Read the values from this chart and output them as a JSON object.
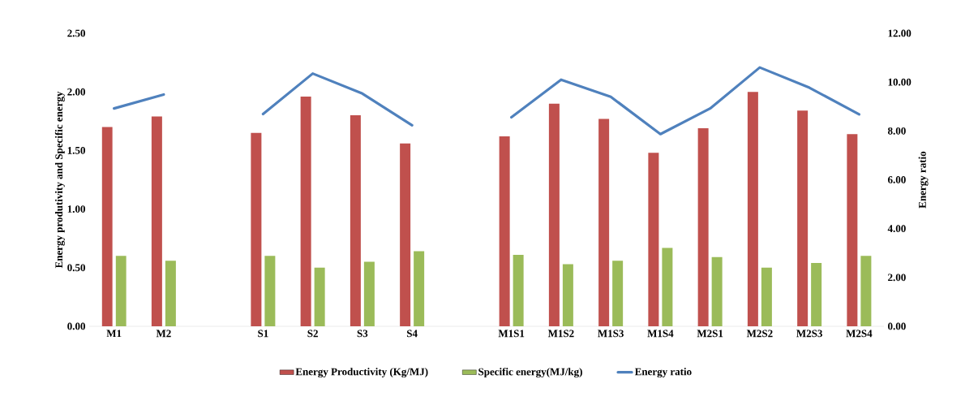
{
  "chart_data": {
    "type": "bar",
    "categories": [
      "M1",
      "M2",
      null,
      "S1",
      "S2",
      "S3",
      "S4",
      null,
      "M1S1",
      "M1S2",
      "M1S3",
      "M1S4",
      "M2S1",
      "M2S2",
      "M2S3",
      "M2S4"
    ],
    "series": [
      {
        "name": "Energy Productivity (Kg/MJ)",
        "color": "#c0504d",
        "values": [
          1.7,
          1.79,
          null,
          1.65,
          1.96,
          1.8,
          1.56,
          null,
          1.62,
          1.9,
          1.77,
          1.48,
          1.69,
          2.0,
          1.84,
          1.64
        ]
      },
      {
        "name": "Specific energy(MJ/kg)",
        "color": "#9bbb59",
        "values": [
          0.6,
          0.56,
          null,
          0.6,
          0.5,
          0.55,
          0.64,
          null,
          0.61,
          0.53,
          0.56,
          0.67,
          0.59,
          0.5,
          0.54,
          0.6
        ]
      },
      {
        "name": "Energy ratio",
        "type": "line",
        "axis": "y2",
        "color": "#4f81bd",
        "values": [
          8.92,
          9.49,
          null,
          8.69,
          10.35,
          9.53,
          8.23,
          null,
          8.56,
          10.1,
          9.4,
          7.87,
          8.92,
          10.6,
          9.77,
          8.68
        ]
      }
    ],
    "ylabel": "Energy produtivity and Specific energy",
    "y2label": "Energy ratio",
    "ylim": [
      0,
      2.5
    ],
    "yticks": [
      {
        "value": 0,
        "label": "0.00"
      },
      {
        "value": 0.5,
        "label": "0.50"
      },
      {
        "value": 1,
        "label": "1.00"
      },
      {
        "value": 1.5,
        "label": "1.50"
      },
      {
        "value": 2,
        "label": "2.00"
      },
      {
        "value": 2.5,
        "label": "2.50"
      }
    ],
    "y2lim": [
      0,
      12
    ],
    "y2ticks": [
      {
        "value": 0,
        "label": "0.00"
      },
      {
        "value": 2,
        "label": "2.00"
      },
      {
        "value": 4,
        "label": "4.00"
      },
      {
        "value": 6,
        "label": "6.00"
      },
      {
        "value": 8,
        "label": "8.00"
      },
      {
        "value": 10,
        "label": "10.00"
      },
      {
        "value": 12,
        "label": "12.00"
      }
    ],
    "grid": false,
    "legend": "bottom",
    "marker": "none",
    "line_style": "solid"
  }
}
